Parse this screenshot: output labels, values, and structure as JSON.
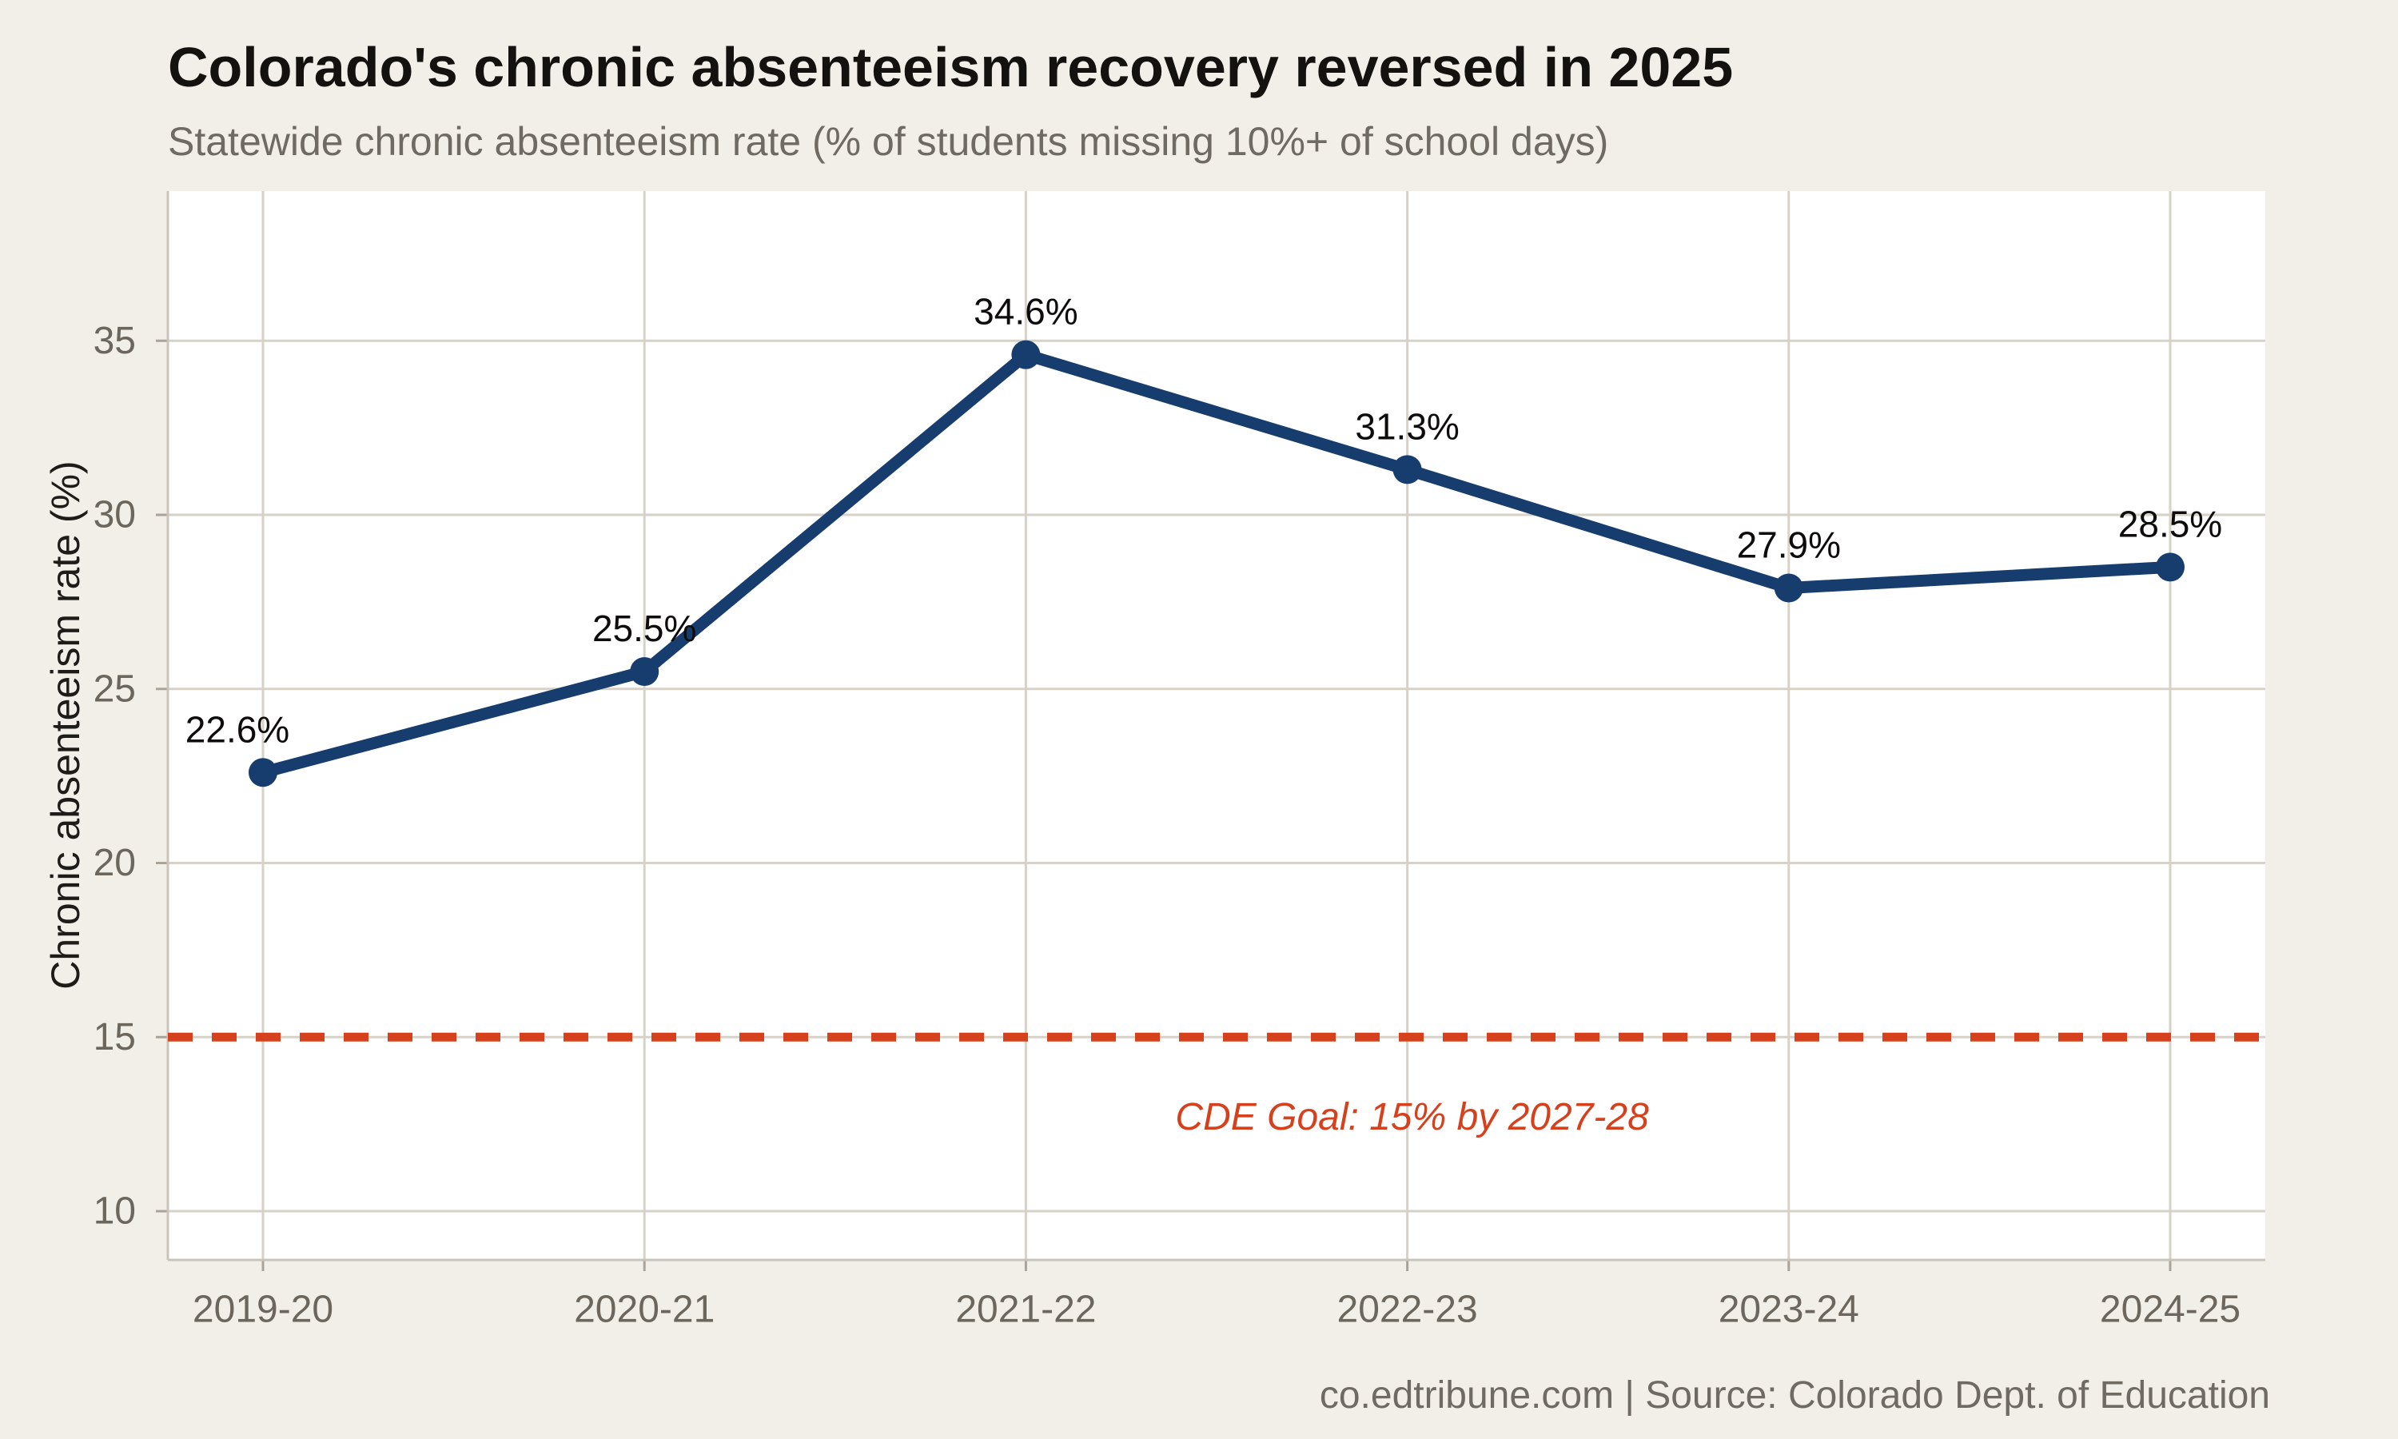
{
  "header": {
    "title": "Colorado's chronic absenteeism recovery reversed in 2025",
    "subtitle": "Statewide chronic absenteeism rate (% of students missing 10%+ of school days)"
  },
  "footer": {
    "credit": "co.edtribune.com | Source: Colorado Dept. of Education"
  },
  "chart_data": {
    "type": "line",
    "title": "Colorado's chronic absenteeism recovery reversed in 2025",
    "subtitle": "Statewide chronic absenteeism rate (% of students missing 10%+ of school days)",
    "categories": [
      "2019-20",
      "2020-21",
      "2021-22",
      "2022-23",
      "2023-24",
      "2024-25"
    ],
    "series": [
      {
        "name": "Statewide chronic absenteeism rate (%)",
        "values": [
          22.6,
          25.5,
          34.6,
          31.3,
          27.9,
          28.5
        ]
      }
    ],
    "point_labels": [
      "22.6%",
      "25.5%",
      "34.6%",
      "31.3%",
      "27.9%",
      "28.5%"
    ],
    "xlabel": "",
    "ylabel": "Chronic absenteeism rate (%)",
    "ylim": [
      8.6,
      39.3
    ],
    "yticks": [
      10,
      15,
      20,
      25,
      30,
      35
    ],
    "grid": true,
    "legend": "none",
    "reference_line": {
      "y": 15,
      "style": "dashed",
      "label": "CDE Goal: 15% by 2027-28",
      "anchor_category": "2022-23"
    },
    "source": "co.edtribune.com | Source: Colorado Dept. of Education",
    "colors": {
      "background": "#F2EFE9",
      "panel": "#FFFFFF",
      "gridline": "#D7D2C8",
      "axis_line": "#C9C4BA",
      "tick_mark": "#A9A399",
      "tick_text": "#6C665D",
      "line": "#173D6E",
      "point": "#173D6E",
      "data_label": "#0E0D0B",
      "goal_line": "#D5411D",
      "title": "#14120F",
      "subtitle": "#6F6A62"
    }
  }
}
